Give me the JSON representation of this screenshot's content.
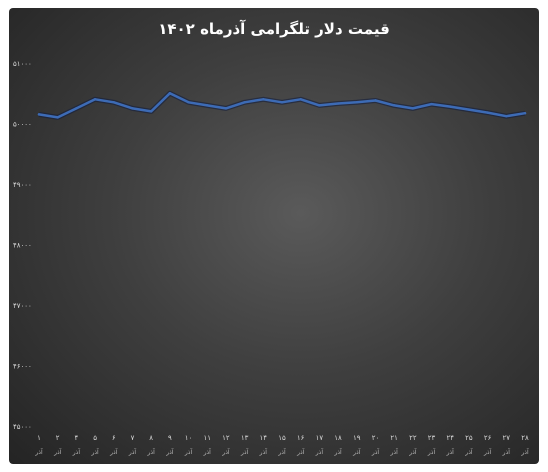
{
  "chart_data": {
    "type": "line",
    "title": "قیمت دلار تلگرامی آذرماه ۱۴۰۲",
    "xlabel": "",
    "ylabel": "",
    "ylim": [
      45000,
      51000
    ],
    "y_ticks": [
      {
        "value": 51000,
        "label": "۵۱۰۰۰"
      },
      {
        "value": 50000,
        "label": "۵۰۰۰۰"
      },
      {
        "value": 49000,
        "label": "۴۹۰۰۰"
      },
      {
        "value": 48000,
        "label": "۴۸۰۰۰"
      },
      {
        "value": 47000,
        "label": "۴۷۰۰۰"
      },
      {
        "value": 46000,
        "label": "۴۶۰۰۰"
      },
      {
        "value": 45000,
        "label": "۴۵۰۰۰"
      }
    ],
    "categories": [
      "۱",
      "۲",
      "۴",
      "۵",
      "۶",
      "۷",
      "۸",
      "۹",
      "۱۰",
      "۱۱",
      "۱۲",
      "۱۳",
      "۱۴",
      "۱۵",
      "۱۶",
      "۱۷",
      "۱۸",
      "۱۹",
      "۲۰",
      "۲۱",
      "۲۲",
      "۲۳",
      "۲۴",
      "۲۵",
      "۲۶",
      "۲۷",
      "۲۸"
    ],
    "category_sub_label": "آذر",
    "series": [
      {
        "color": "#3d6bb5",
        "values": [
          50150,
          50100,
          50250,
          50400,
          50350,
          50250,
          50200,
          50500,
          50350,
          50300,
          50250,
          50350,
          50400,
          50350,
          50400,
          50300,
          50330,
          50350,
          50380,
          50300,
          50250,
          50320,
          50280,
          50230,
          50180,
          50120,
          50170
        ]
      }
    ],
    "grid": false,
    "legend": "none"
  }
}
